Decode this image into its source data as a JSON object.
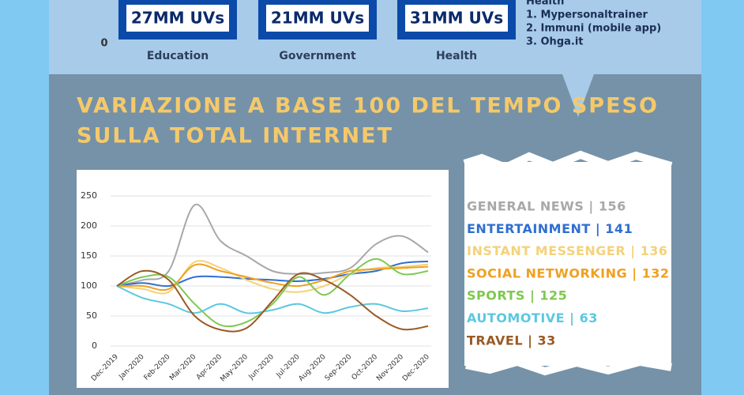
{
  "top": {
    "boxes": [
      {
        "value": "27MM UVs",
        "label": "Education"
      },
      {
        "value": "21MM UVs",
        "label": "Government"
      },
      {
        "value": "31MM UVs",
        "label": "Health"
      }
    ],
    "axis_zero": "0",
    "list_heading": "Health",
    "list": [
      "1. Mypersonaltrainer",
      "2. Immuni (mobile app)",
      "3. Ohga.it"
    ]
  },
  "chart_data": {
    "type": "line",
    "title": [
      "VARIAZIONE A BASE 100 DEL TEMPO SPESO",
      "SULLA TOTAL INTERNET"
    ],
    "categories": [
      "Dec-2019",
      "Jan-2020",
      "Feb-2020",
      "Mar-2020",
      "Apr-2020",
      "May-2020",
      "Jun-2020",
      "Jul-2020",
      "Aug-2020",
      "Sep-2020",
      "Oct-2020",
      "Nov-2020",
      "Dec-2020"
    ],
    "ylim": [
      0,
      250
    ],
    "yticks": [
      0,
      50,
      100,
      150,
      200,
      250
    ],
    "grid": true,
    "series": [
      {
        "name": "GENERAL NEWS | 156",
        "color": "#a8a8a8",
        "values": [
          100,
          110,
          125,
          235,
          175,
          150,
          125,
          120,
          122,
          130,
          170,
          183,
          156
        ]
      },
      {
        "name": "ENTERTAINMENT | 141",
        "color": "#2f6fd0",
        "values": [
          100,
          105,
          100,
          115,
          115,
          112,
          110,
          108,
          112,
          120,
          125,
          138,
          141
        ]
      },
      {
        "name": "INSTANT MESSENGER | 136",
        "color": "#f3d27a",
        "values": [
          100,
          95,
          90,
          140,
          130,
          110,
          95,
          90,
          100,
          120,
          130,
          132,
          136
        ]
      },
      {
        "name": "SOCIAL NETWORKING | 132",
        "color": "#f0a020",
        "values": [
          100,
          100,
          95,
          135,
          125,
          115,
          105,
          100,
          110,
          125,
          128,
          130,
          132
        ]
      },
      {
        "name": "SPORTS | 125",
        "color": "#7ec850",
        "values": [
          100,
          115,
          115,
          70,
          35,
          40,
          70,
          115,
          85,
          120,
          145,
          120,
          125
        ]
      },
      {
        "name": "AUTOMOTIVE | 63",
        "color": "#5bc8e0",
        "values": [
          100,
          80,
          70,
          55,
          70,
          55,
          60,
          70,
          55,
          65,
          70,
          58,
          63
        ]
      },
      {
        "name": "TRAVEL | 33",
        "color": "#9a5a25",
        "values": [
          100,
          125,
          110,
          50,
          27,
          30,
          75,
          120,
          110,
          85,
          50,
          28,
          33
        ]
      }
    ]
  }
}
